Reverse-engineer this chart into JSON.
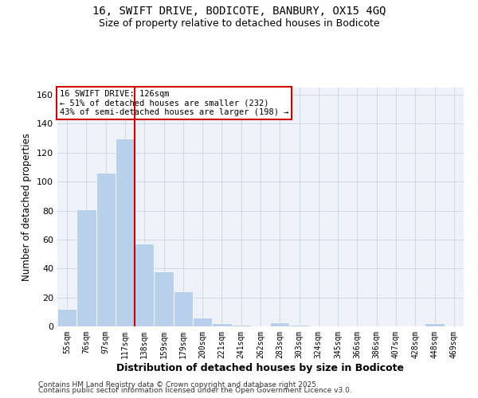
{
  "title1": "16, SWIFT DRIVE, BODICOTE, BANBURY, OX15 4GQ",
  "title2": "Size of property relative to detached houses in Bodicote",
  "xlabel": "Distribution of detached houses by size in Bodicote",
  "ylabel": "Number of detached properties",
  "bar_labels": [
    "55sqm",
    "76sqm",
    "97sqm",
    "117sqm",
    "138sqm",
    "159sqm",
    "179sqm",
    "200sqm",
    "221sqm",
    "241sqm",
    "262sqm",
    "283sqm",
    "303sqm",
    "324sqm",
    "345sqm",
    "366sqm",
    "386sqm",
    "407sqm",
    "428sqm",
    "448sqm",
    "469sqm"
  ],
  "bar_heights": [
    12,
    81,
    106,
    130,
    57,
    38,
    24,
    6,
    2,
    1,
    0,
    3,
    1,
    0,
    0,
    0,
    0,
    0,
    0,
    2,
    0
  ],
  "bar_color": "#b8d0ea",
  "bar_edge_color": "#ffffff",
  "vline_x_index": 3.5,
  "vline_color": "#cc0000",
  "annotation_text": "16 SWIFT DRIVE: 126sqm\n← 51% of detached houses are smaller (232)\n43% of semi-detached houses are larger (198) →",
  "annotation_box_color": "#cc0000",
  "annotation_text_color": "#000000",
  "ylim": [
    0,
    165
  ],
  "yticks": [
    0,
    20,
    40,
    60,
    80,
    100,
    120,
    140,
    160
  ],
  "grid_color": "#d0d8e8",
  "bg_color": "#eef2f8",
  "footer1": "Contains HM Land Registry data © Crown copyright and database right 2025.",
  "footer2": "Contains public sector information licensed under the Open Government Licence v3.0."
}
